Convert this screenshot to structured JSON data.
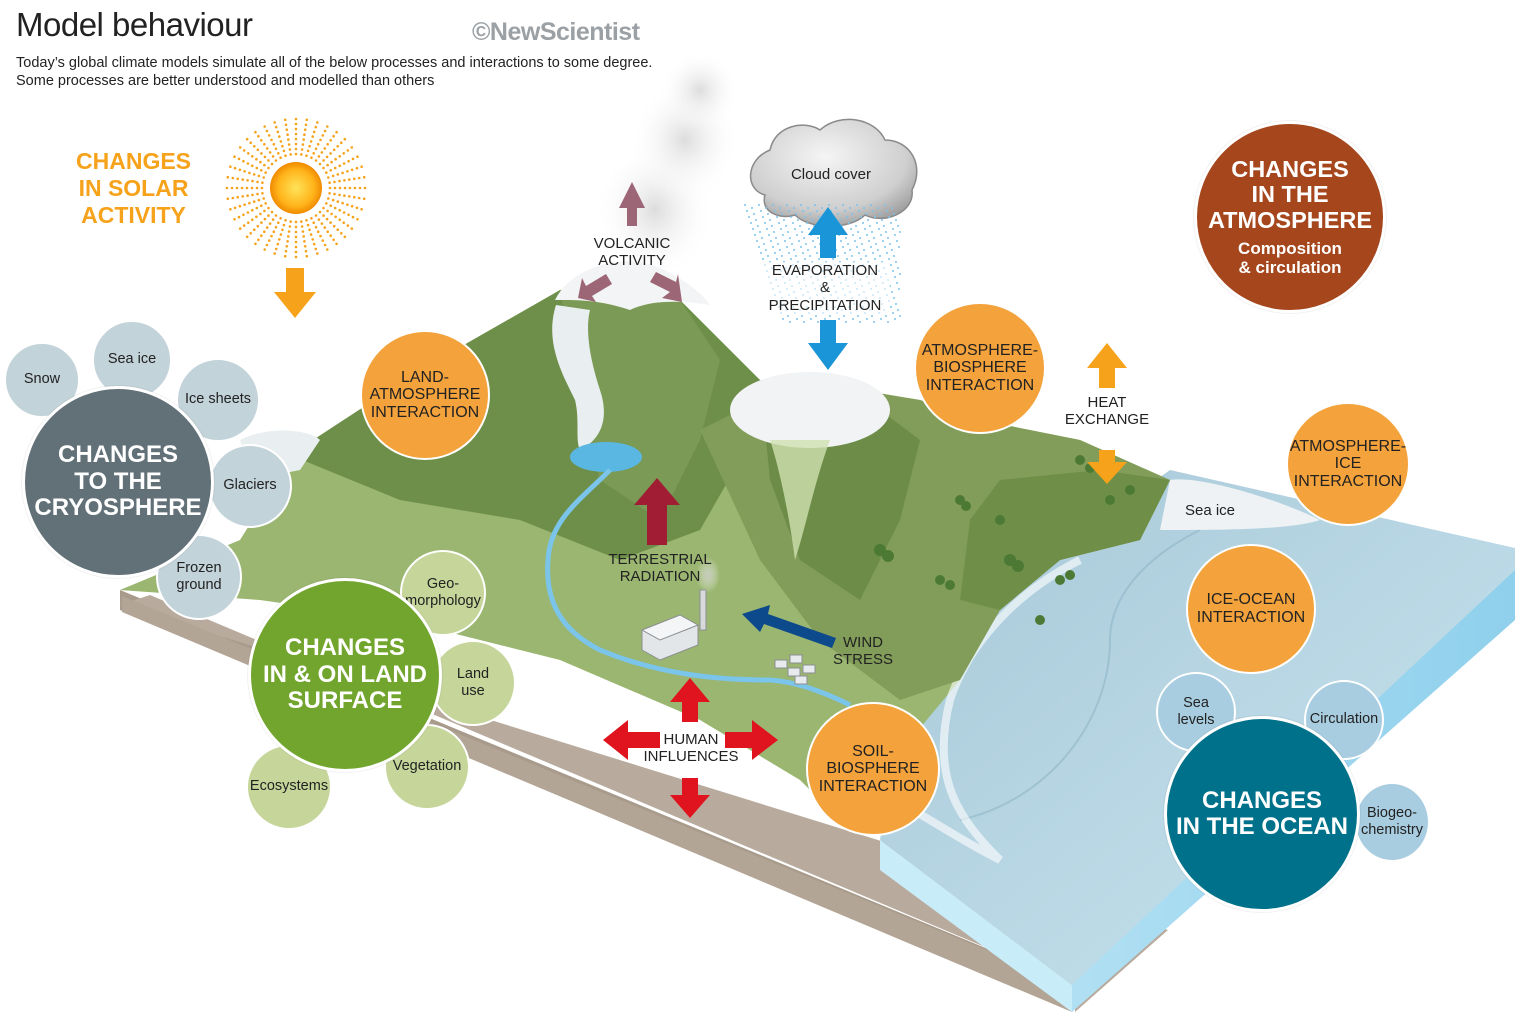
{
  "header": {
    "title": "Model behaviour",
    "subtitle_line1": "Today’s global climate models simulate all of the below processes and interactions to some degree.",
    "subtitle_line2": "Some processes are better understood and modelled than others",
    "brand": "©NewScientist"
  },
  "solar": {
    "line1": "CHANGES",
    "line2": "IN SOLAR",
    "line3": "ACTIVITY"
  },
  "atmosphere": {
    "line1": "CHANGES",
    "line2": "IN THE",
    "line3": "ATMOSPHERE",
    "sub1": "Composition",
    "sub2": "& circulation"
  },
  "cryosphere": {
    "line1": "CHANGES",
    "line2": "TO THE",
    "line3": "CRYOSPHERE",
    "items": {
      "snow": "Snow",
      "sea_ice": "Sea ice",
      "ice_sheets": "Ice sheets",
      "glaciers": "Glaciers",
      "frozen1": "Frozen",
      "frozen2": "ground"
    }
  },
  "land": {
    "line1": "CHANGES",
    "line2": "IN & ON LAND",
    "line3": "SURFACE",
    "items": {
      "geo1": "Geo-",
      "geo2": "morphology",
      "landuse1": "Land",
      "landuse2": "use",
      "vegetation": "Vegetation",
      "ecosystems": "Ecosystems"
    }
  },
  "ocean": {
    "line1": "CHANGES",
    "line2": "IN THE OCEAN",
    "items": {
      "sea1": "Sea",
      "sea2": "levels",
      "circulation": "Circulation",
      "bio1": "Biogeo-",
      "bio2": "chemistry"
    }
  },
  "interactions": {
    "land_atm": [
      "LAND-",
      "ATMOSPHERE",
      "INTERACTION"
    ],
    "atm_bio": [
      "ATMOSPHERE-",
      "BIOSPHERE",
      "INTERACTION"
    ],
    "atm_ice": [
      "ATMOSPHERE-",
      "ICE",
      "INTERACTION"
    ],
    "ice_ocean": [
      "ICE-OCEAN",
      "INTERACTION"
    ],
    "soil_bio": [
      "SOIL-",
      "BIOSPHERE",
      "INTERACTION"
    ]
  },
  "labels": {
    "volcanic1": "VOLCANIC",
    "volcanic2": "ACTIVITY",
    "cloud": "Cloud cover",
    "evap1": "EVAPORATION",
    "evap2": "&",
    "evap3": "PRECIPITATION",
    "heat1": "HEAT",
    "heat2": "EXCHANGE",
    "terr1": "TERRESTRIAL",
    "terr2": "RADIATION",
    "wind1": "WIND",
    "wind2": "STRESS",
    "human1": "HUMAN",
    "human2": "INFLUENCES",
    "sea_ice": "Sea ice"
  },
  "colors": {
    "solar": "#f6a21a",
    "atmosphere": "#a5461d",
    "cryosphere": "#627178",
    "land": "#72a52e",
    "ocean": "#00718a",
    "interaction": "#f4a23b",
    "small_cryo": "#c3d3da",
    "small_land": "#c6d69a",
    "small_ocean": "#a9cde0",
    "volcanic_arrow": "#9c6677",
    "water_arrow": "#1a96d8",
    "heat_arrow": "#f6a21a",
    "terrestrial_arrow": "#a11d34",
    "human_arrow": "#e0141e",
    "wind_arrow": "#0c4a8c"
  }
}
